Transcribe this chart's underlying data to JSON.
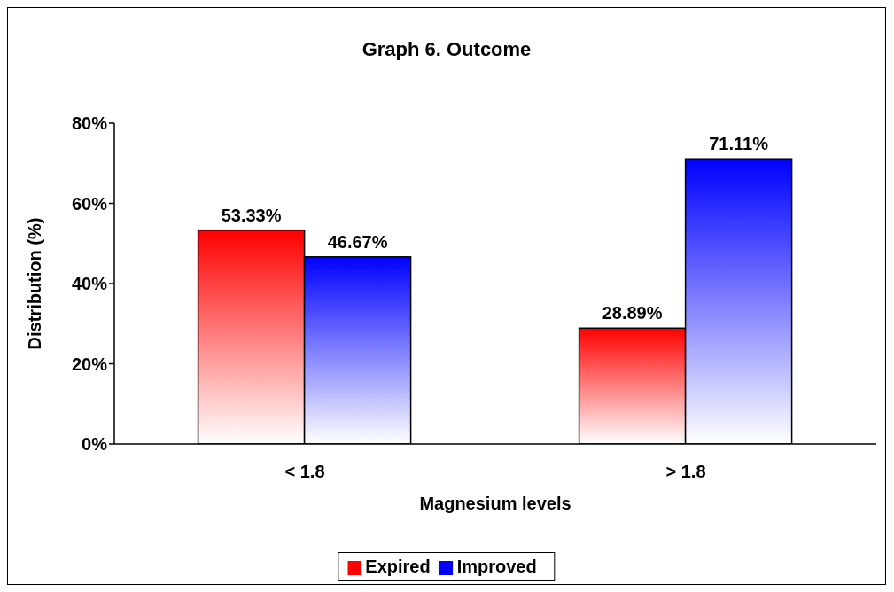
{
  "chart_data": {
    "type": "bar",
    "title": "Graph 6. Outcome",
    "xlabel": "Magnesium levels",
    "ylabel": "Distribution (%)",
    "categories": [
      "< 1.8",
      "> 1.8"
    ],
    "series": [
      {
        "name": "Expired",
        "color": "#ff0000",
        "values": [
          53.33,
          28.89
        ],
        "value_labels": [
          "53.33%",
          "28.89%"
        ]
      },
      {
        "name": "Improved",
        "color": "#0000ff",
        "values": [
          46.67,
          71.11
        ],
        "value_labels": [
          "46.67%",
          "71.11%"
        ]
      }
    ],
    "ylim": [
      0,
      80
    ],
    "yticks": [
      {
        "value": 0,
        "label": "0%"
      },
      {
        "value": 20,
        "label": "20%"
      },
      {
        "value": 40,
        "label": "40%"
      },
      {
        "value": 60,
        "label": "60%"
      },
      {
        "value": 80,
        "label": "80%"
      }
    ],
    "grid": false,
    "legend": "bottom"
  }
}
